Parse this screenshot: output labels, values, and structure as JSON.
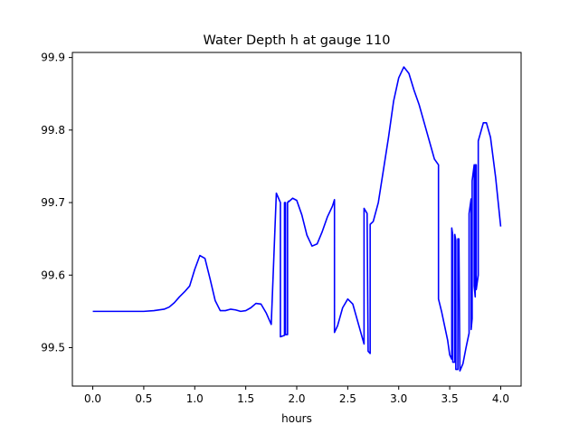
{
  "chart_data": {
    "type": "line",
    "title": "Water Depth h at gauge 110",
    "xlabel": "hours",
    "ylabel": "",
    "xlim": [
      -0.2,
      4.2
    ],
    "ylim": [
      99.447,
      99.907
    ],
    "xticks": [
      0.0,
      0.5,
      1.0,
      1.5,
      2.0,
      2.5,
      3.0,
      3.5,
      4.0
    ],
    "xtick_labels": [
      "0.0",
      "0.5",
      "1.0",
      "1.5",
      "2.0",
      "2.5",
      "3.0",
      "3.5",
      "4.0"
    ],
    "yticks": [
      99.5,
      99.6,
      99.7,
      99.8,
      99.9
    ],
    "ytick_labels": [
      "99.5",
      "99.6",
      "99.7",
      "99.8",
      "99.9"
    ],
    "grid": false,
    "series": [
      {
        "color": "#0000ff",
        "x": [
          0.0,
          0.2,
          0.4,
          0.5,
          0.6,
          0.7,
          0.75,
          0.8,
          0.85,
          0.9,
          0.95,
          1.0,
          1.05,
          1.1,
          1.15,
          1.2,
          1.25,
          1.3,
          1.35,
          1.4,
          1.45,
          1.5,
          1.55,
          1.6,
          1.65,
          1.7,
          1.75,
          1.8,
          1.8,
          1.84,
          1.84,
          1.88,
          1.88,
          1.89,
          1.89,
          1.91,
          1.91,
          1.92,
          1.92,
          1.96,
          2.0,
          2.05,
          2.1,
          2.15,
          2.2,
          2.25,
          2.3,
          2.35,
          2.37,
          2.37,
          2.4,
          2.45,
          2.5,
          2.55,
          2.6,
          2.65,
          2.66,
          2.66,
          2.69,
          2.7,
          2.72,
          2.72,
          2.75,
          2.8,
          2.85,
          2.9,
          2.95,
          3.0,
          3.05,
          3.1,
          3.15,
          3.2,
          3.25,
          3.3,
          3.35,
          3.39,
          3.39,
          3.42,
          3.45,
          3.48,
          3.5,
          3.52,
          3.52,
          3.53,
          3.53,
          3.55,
          3.55,
          3.56,
          3.56,
          3.58,
          3.58,
          3.59,
          3.6,
          3.63,
          3.66,
          3.69,
          3.69,
          3.71,
          3.71,
          3.72,
          3.72,
          3.74,
          3.74,
          3.75,
          3.75,
          3.76,
          3.76,
          3.78,
          3.78,
          3.8,
          3.83,
          3.86,
          3.9,
          3.95,
          4.0
        ],
        "y": [
          99.55,
          99.55,
          99.55,
          99.55,
          99.551,
          99.553,
          99.556,
          99.562,
          99.57,
          99.577,
          99.585,
          99.608,
          99.627,
          99.623,
          99.595,
          99.565,
          99.551,
          99.551,
          99.553,
          99.552,
          99.55,
          99.551,
          99.555,
          99.561,
          99.56,
          99.548,
          99.532,
          99.713,
          99.713,
          99.7,
          99.515,
          99.517,
          99.7,
          99.7,
          99.518,
          99.518,
          99.7,
          99.702,
          99.701,
          99.706,
          99.703,
          99.683,
          99.655,
          99.64,
          99.643,
          99.66,
          99.68,
          99.695,
          99.704,
          99.521,
          99.53,
          99.555,
          99.567,
          99.56,
          99.535,
          99.51,
          99.505,
          99.692,
          99.685,
          99.495,
          99.492,
          99.67,
          99.674,
          99.7,
          99.745,
          99.79,
          99.84,
          99.872,
          99.887,
          99.878,
          99.855,
          99.835,
          99.81,
          99.785,
          99.76,
          99.752,
          99.567,
          99.55,
          99.53,
          99.51,
          99.49,
          99.484,
          99.665,
          99.655,
          99.48,
          99.48,
          99.656,
          99.648,
          99.47,
          99.47,
          99.65,
          99.65,
          99.468,
          99.478,
          99.5,
          99.52,
          99.685,
          99.705,
          99.525,
          99.54,
          99.73,
          99.752,
          99.585,
          99.57,
          99.752,
          99.752,
          99.58,
          99.6,
          99.785,
          99.795,
          99.81,
          99.81,
          99.79,
          99.735,
          99.667
        ]
      }
    ]
  }
}
